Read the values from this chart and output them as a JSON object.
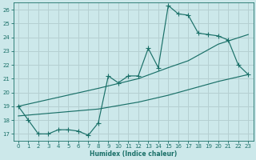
{
  "xlabel": "Humidex (Indice chaleur)",
  "bg_color": "#cce8ea",
  "grid_color": "#b5d0d2",
  "line_color": "#1a7068",
  "xlim": [
    -0.5,
    23.5
  ],
  "ylim": [
    16.5,
    26.5
  ],
  "xticks": [
    0,
    1,
    2,
    3,
    4,
    5,
    6,
    7,
    8,
    9,
    10,
    11,
    12,
    13,
    14,
    15,
    16,
    17,
    18,
    19,
    20,
    21,
    22,
    23
  ],
  "yticks": [
    17,
    18,
    19,
    20,
    21,
    22,
    23,
    24,
    25,
    26
  ],
  "curve_x": [
    0,
    1,
    2,
    3,
    4,
    5,
    6,
    7,
    8,
    9,
    10,
    11,
    12,
    13,
    14,
    15,
    16,
    17,
    18,
    19,
    20,
    21,
    22,
    23
  ],
  "curve_y": [
    19.0,
    18.0,
    17.0,
    17.0,
    17.3,
    17.3,
    17.2,
    16.9,
    17.8,
    21.2,
    20.7,
    21.2,
    21.2,
    23.2,
    21.8,
    26.3,
    25.7,
    25.6,
    24.3,
    24.2,
    24.1,
    23.8,
    22.0,
    21.3
  ],
  "diag1_x": [
    0,
    8,
    12,
    15,
    17,
    20,
    23
  ],
  "diag1_y": [
    19.0,
    20.3,
    21.0,
    21.8,
    22.3,
    23.5,
    24.2
  ],
  "diag2_x": [
    0,
    8,
    12,
    15,
    17,
    20,
    23
  ],
  "diag2_y": [
    18.3,
    18.8,
    19.3,
    19.8,
    20.2,
    20.8,
    21.3
  ]
}
